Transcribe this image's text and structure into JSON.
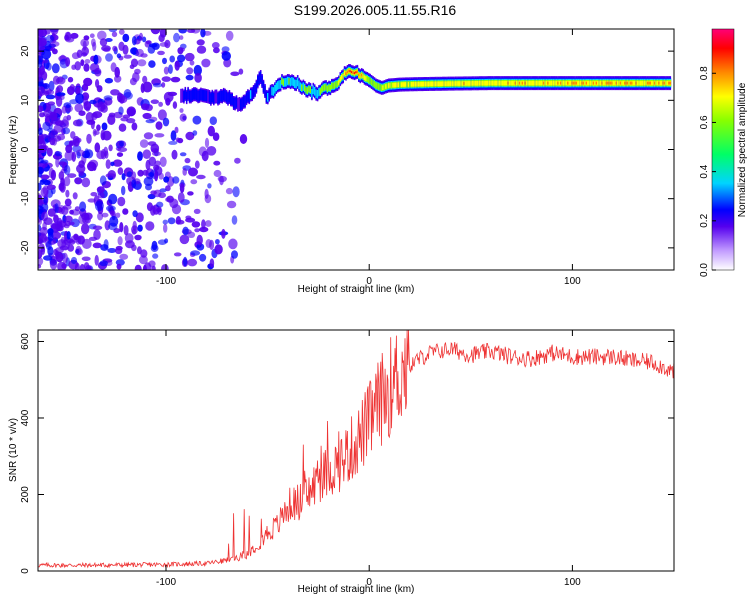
{
  "title": "S199.2026.005.11.55.R16",
  "chart_data": [
    {
      "type": "heatmap",
      "xlabel": "Height of straight line (km)",
      "ylabel": "Frequency (Hz)",
      "xlim": [
        -163,
        150
      ],
      "ylim": [
        -24.5,
        24.5
      ],
      "xticks": [
        -100,
        0,
        100
      ],
      "yticks": [
        -20,
        -10,
        0,
        10,
        20
      ],
      "grid": false,
      "ridge": {
        "x": [
          -93,
          -85,
          -77,
          -71,
          -65,
          -60,
          -57,
          -54,
          -51,
          -48,
          -45,
          -42,
          -38,
          -34,
          -30,
          -26,
          -22,
          -18,
          -15,
          -12,
          -9,
          -6,
          -3,
          0,
          3,
          6,
          9,
          15,
          25,
          40,
          60,
          100,
          148
        ],
        "y": [
          11,
          11,
          10.5,
          11,
          9,
          10.5,
          12,
          15,
          10.5,
          12,
          13,
          14,
          14,
          13,
          12,
          11.5,
          12.5,
          13,
          14,
          15.5,
          16,
          15.5,
          15,
          14,
          13,
          12.5,
          13,
          13.2,
          13.3,
          13.4,
          13.5,
          13.5,
          13.5
        ],
        "amplitude": [
          0.25,
          0.3,
          0.25,
          0.3,
          0.25,
          0.3,
          0.35,
          0.3,
          0.3,
          0.4,
          0.45,
          0.55,
          0.5,
          0.5,
          0.55,
          0.5,
          0.6,
          0.55,
          0.65,
          0.8,
          0.95,
          0.9,
          0.7,
          0.6,
          0.55,
          0.6,
          0.65,
          0.7,
          0.7,
          0.75,
          0.75,
          0.8,
          0.8
        ]
      }
    },
    {
      "type": "colorbar",
      "label": "Normalized spectral amplitude",
      "range": [
        0,
        0.98
      ],
      "ticks": [
        "0.0",
        "0.2",
        "0.4",
        "0.6",
        "0.8"
      ]
    },
    {
      "type": "line",
      "xlabel": "Height of straight line (km)",
      "ylabel": "SNR (10 * v/v)",
      "xlim": [
        -163,
        150
      ],
      "ylim": [
        0,
        630
      ],
      "xticks": [
        -100,
        0,
        100
      ],
      "yticks": [
        0,
        200,
        400,
        600
      ],
      "color": "#ee3333",
      "series": [
        {
          "x": [
            -163,
            -140,
            -120,
            -100,
            -80,
            -70,
            -65,
            -60,
            -55,
            -50,
            -45,
            -40,
            -35,
            -30,
            -25,
            -20,
            -15,
            -10,
            -5,
            0,
            5,
            10,
            15,
            20,
            30,
            40,
            50,
            60,
            70,
            80,
            90,
            100,
            110,
            120,
            130,
            140,
            150
          ],
          "y": [
            15,
            15,
            16,
            17,
            20,
            28,
            35,
            45,
            70,
            100,
            120,
            170,
            180,
            200,
            240,
            260,
            280,
            310,
            345,
            390,
            440,
            480,
            515,
            540,
            570,
            580,
            565,
            575,
            560,
            555,
            570,
            560,
            560,
            560,
            550,
            545,
            520
          ]
        }
      ]
    }
  ]
}
